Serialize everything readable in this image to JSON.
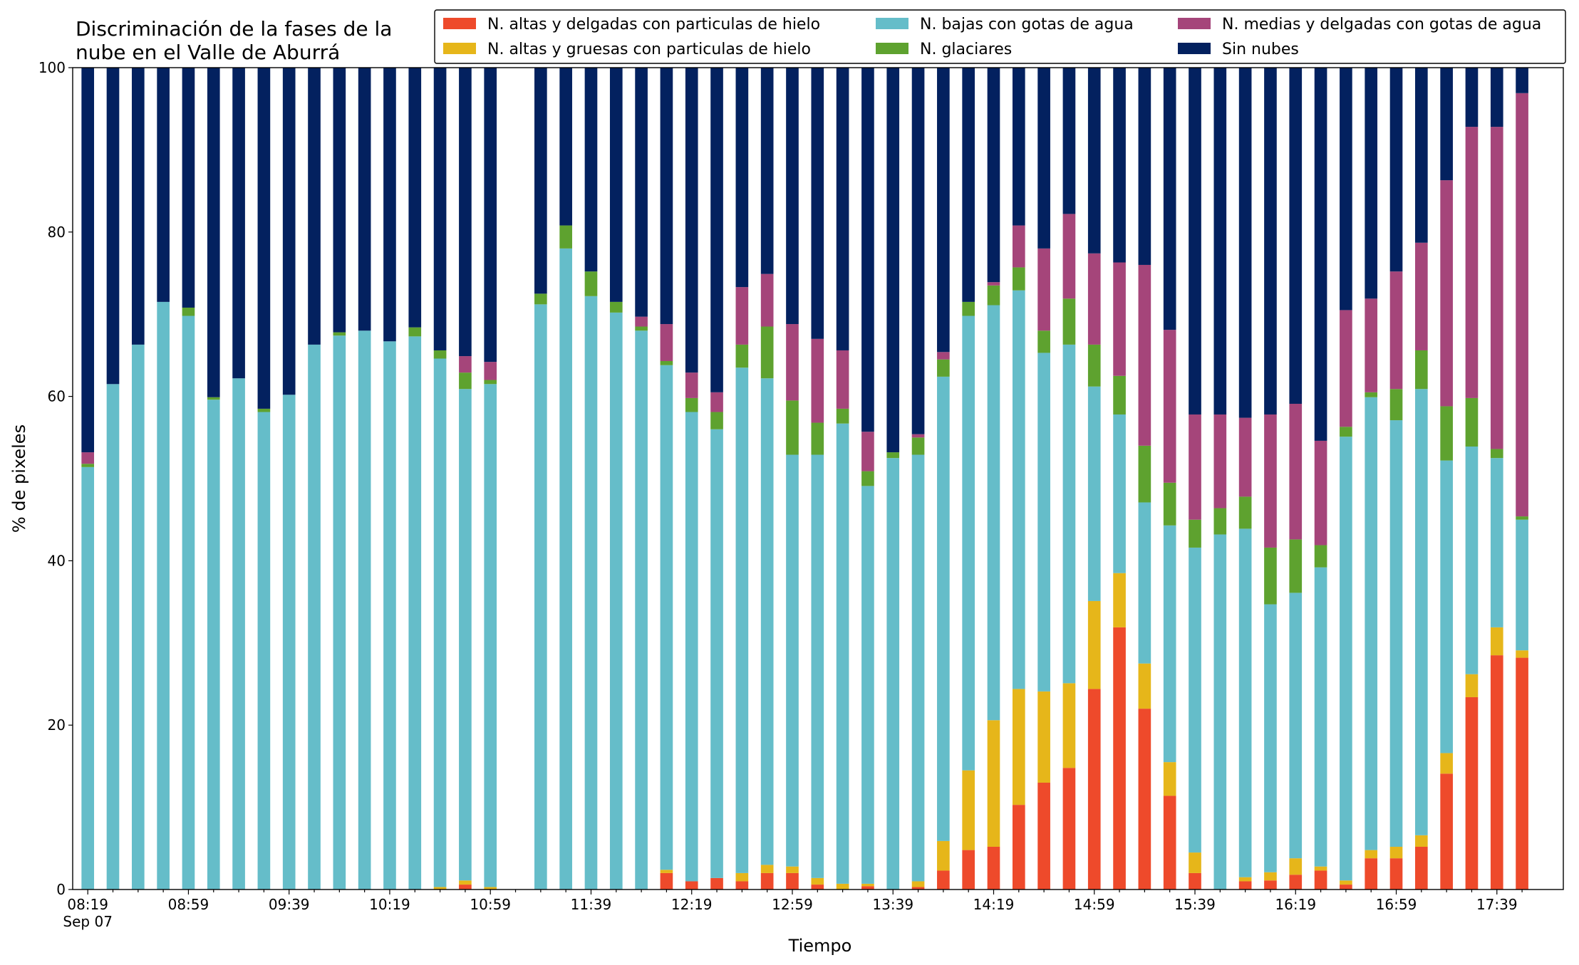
{
  "chart_data": {
    "type": "stacked_bar",
    "title": [
      "Discriminación de la fases de la",
      "nube en el Valle de Aburrá"
    ],
    "xlabel": "Tiempo",
    "ylabel": "% de pixeles",
    "date_label": "Sep 07",
    "categories": [
      "08:19",
      null,
      null,
      null,
      "08:59",
      null,
      null,
      null,
      "09:39",
      null,
      null,
      null,
      "10:19",
      null,
      null,
      null,
      "10:59",
      null,
      null,
      null,
      "11:39",
      null,
      null,
      null,
      "12:19",
      null,
      null,
      null,
      "12:59",
      null,
      null,
      null,
      "13:39",
      null,
      null,
      null,
      "14:19",
      null,
      null,
      null,
      "14:59",
      null,
      null,
      null,
      "15:39",
      null,
      null,
      null,
      "16:19",
      null,
      null,
      null,
      "16:59",
      null,
      null,
      null,
      "17:39",
      null
    ],
    "series": [
      {
        "name": "N. altas y delgadas con particulas de hielo",
        "color": "#ee4a2b",
        "values": [
          0,
          0,
          0,
          0,
          0,
          0,
          0,
          0,
          0,
          0,
          0,
          0,
          0,
          0,
          0,
          0.6,
          0,
          null,
          0,
          0,
          0,
          0,
          0,
          2.0,
          1.0,
          1.4,
          1.0,
          2.0,
          2.0,
          0.6,
          0,
          0.4,
          0,
          0.3,
          2.3,
          4.8,
          5.2,
          10.3,
          13.0,
          14.8,
          24.4,
          31.9,
          22.0,
          11.4,
          2.0,
          0,
          1.0,
          1.1,
          1.8,
          2.3,
          0.6,
          3.8,
          3.8,
          5.2,
          14.1,
          23.4,
          28.5,
          28.2
        ]
      },
      {
        "name": "N. altas y gruesas con particulas de hielo",
        "color": "#e6b61a",
        "values": [
          0,
          0,
          0,
          0,
          0,
          0,
          0,
          0,
          0,
          0,
          0,
          0,
          0,
          0,
          0.3,
          0.5,
          0.3,
          null,
          0,
          0,
          0,
          0,
          0,
          0.4,
          0,
          0,
          1.0,
          1.0,
          0.8,
          0.8,
          0.7,
          0.3,
          0,
          0.7,
          3.6,
          9.7,
          15.4,
          14.1,
          11.1,
          10.3,
          10.7,
          6.6,
          5.5,
          4.1,
          2.5,
          0,
          0.5,
          1.0,
          2.0,
          0.5,
          0.5,
          1.0,
          1.4,
          1.4,
          2.5,
          2.8,
          3.4,
          0.9
        ]
      },
      {
        "name": "N. bajas con gotas de agua",
        "color": "#65bdc9",
        "values": [
          51.4,
          61.5,
          66.3,
          71.5,
          69.8,
          59.6,
          62.2,
          58.1,
          60.2,
          66.3,
          67.4,
          68.0,
          66.7,
          67.3,
          64.3,
          59.8,
          61.2,
          null,
          71.2,
          78.0,
          72.2,
          70.2,
          68.0,
          61.4,
          57.1,
          54.6,
          61.5,
          59.2,
          50.1,
          51.5,
          56.0,
          48.4,
          52.5,
          51.9,
          56.5,
          55.3,
          50.5,
          48.5,
          41.2,
          41.2,
          26.1,
          19.3,
          19.6,
          28.8,
          37.1,
          43.2,
          42.4,
          32.6,
          32.3,
          36.4,
          54.0,
          55.1,
          51.9,
          54.3,
          35.6,
          27.7,
          20.6,
          15.9
        ]
      },
      {
        "name": "N. glaciares",
        "color": "#5ea22f",
        "values": [
          0.4,
          0,
          0,
          0,
          1.0,
          0.3,
          0,
          0.4,
          0,
          0,
          0.4,
          0,
          0,
          1.1,
          1.0,
          2.0,
          0.5,
          null,
          1.3,
          2.8,
          3.0,
          1.3,
          0.5,
          0.5,
          1.7,
          2.1,
          2.8,
          6.3,
          6.6,
          3.9,
          1.8,
          1.8,
          0.7,
          2.1,
          2.1,
          1.7,
          2.4,
          2.8,
          2.7,
          5.6,
          5.1,
          4.7,
          6.9,
          5.2,
          3.4,
          3.2,
          3.9,
          6.9,
          6.5,
          2.7,
          1.2,
          0.6,
          3.8,
          4.7,
          6.6,
          5.9,
          1.1,
          0.4
        ]
      },
      {
        "name": "N. medias y delgadas con gotas de agua",
        "color": "#a5457a",
        "values": [
          1.4,
          0,
          0,
          0,
          0,
          0,
          0,
          0,
          0,
          0,
          0,
          0,
          0,
          0,
          0,
          2.0,
          2.2,
          null,
          0,
          0,
          0,
          0,
          1.2,
          4.5,
          3.1,
          2.4,
          7.0,
          6.4,
          9.3,
          10.2,
          7.1,
          4.8,
          0,
          0.4,
          0.9,
          0,
          0.4,
          5.1,
          10.0,
          10.3,
          11.1,
          13.8,
          22.0,
          18.6,
          12.8,
          11.4,
          9.6,
          16.2,
          16.5,
          12.7,
          14.2,
          11.4,
          14.3,
          13.1,
          27.5,
          33.0,
          39.2,
          51.5
        ]
      },
      {
        "name": "Sin nubes",
        "color": "#03215f",
        "values": [
          46.8,
          38.5,
          33.7,
          28.5,
          29.2,
          40.1,
          37.8,
          41.5,
          39.8,
          33.7,
          32.2,
          32.0,
          33.3,
          31.6,
          34.4,
          35.1,
          35.8,
          null,
          27.5,
          19.2,
          24.8,
          28.5,
          30.3,
          31.2,
          37.1,
          39.5,
          26.7,
          25.1,
          31.2,
          33.0,
          34.4,
          44.3,
          46.8,
          44.6,
          34.6,
          28.5,
          26.1,
          19.2,
          22.0,
          17.8,
          22.6,
          23.7,
          24.0,
          31.9,
          42.2,
          42.2,
          42.6,
          42.2,
          40.9,
          45.4,
          29.5,
          28.1,
          24.8,
          21.3,
          13.7,
          7.2,
          7.2,
          3.1
        ]
      }
    ],
    "ylim": [
      0,
      100
    ],
    "yticks": [
      0,
      20,
      40,
      60,
      80,
      100
    ],
    "legend": "upper right"
  }
}
